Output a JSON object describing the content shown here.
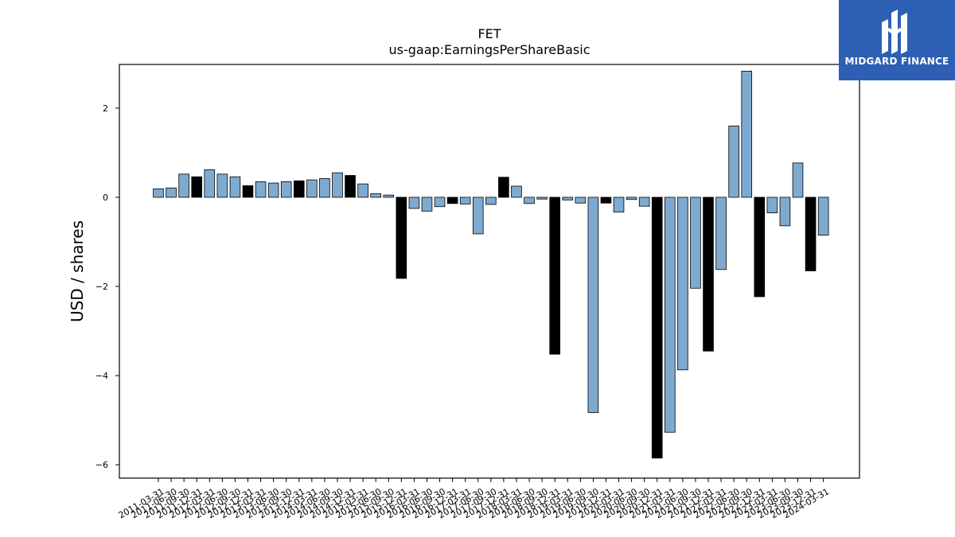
{
  "chart_data": {
    "type": "bar",
    "title": "FET",
    "subtitle": "us-gaap:EarningsPerShareBasic",
    "xlabel": "",
    "ylabel": "USD / shares",
    "ylim": [
      -6.3,
      2.98
    ],
    "yticks": [
      2,
      0,
      -2,
      -4,
      -6
    ],
    "ytick_labels": [
      "2",
      "0",
      "−2",
      "−4",
      "−6"
    ],
    "grid": false,
    "colors": {
      "light": "#7eaad0",
      "dark": "#000000",
      "edge": "#000000"
    },
    "categories": [
      "2011-03-31",
      "2011-06-30",
      "2011-09-30",
      "2011-12-31",
      "2012-03-31",
      "2012-06-30",
      "2012-09-30",
      "2012-12-31",
      "2013-03-31",
      "2013-06-30",
      "2013-09-30",
      "2013-12-31",
      "2014-03-31",
      "2014-06-30",
      "2014-09-30",
      "2014-12-31",
      "2015-03-31",
      "2015-06-30",
      "2015-09-30",
      "2015-12-31",
      "2016-03-31",
      "2016-06-30",
      "2016-09-30",
      "2016-12-31",
      "2017-03-31",
      "2017-06-30",
      "2017-09-30",
      "2017-12-31",
      "2018-03-31",
      "2018-06-30",
      "2018-09-30",
      "2018-12-31",
      "2019-03-31",
      "2019-06-30",
      "2019-09-30",
      "2019-12-31",
      "2020-03-31",
      "2020-06-30",
      "2020-09-30",
      "2020-12-31",
      "2021-03-31",
      "2021-06-30",
      "2021-09-30",
      "2021-12-31",
      "2022-03-31",
      "2022-06-30",
      "2022-09-30",
      "2022-12-31",
      "2023-03-31",
      "2023-06-30",
      "2023-09-30",
      "2023-12-31",
      "2024-03-31"
    ],
    "values": [
      0.19,
      0.21,
      0.52,
      0.46,
      0.62,
      0.52,
      0.46,
      0.26,
      0.35,
      0.32,
      0.35,
      0.37,
      0.39,
      0.42,
      0.55,
      0.49,
      0.3,
      0.08,
      0.05,
      -1.82,
      -0.25,
      -0.31,
      -0.21,
      -0.14,
      -0.15,
      -0.82,
      -0.16,
      0.45,
      0.25,
      -0.14,
      -0.04,
      -3.52,
      -0.06,
      -0.13,
      -4.83,
      -0.13,
      -0.33,
      -0.05,
      -0.2,
      -5.85,
      -5.27,
      -3.87,
      -2.04,
      -3.45,
      -1.62,
      1.6,
      2.83,
      -2.23,
      -0.35,
      -0.64,
      0.77,
      -1.65,
      -0.85
    ],
    "bar_tone": [
      "light",
      "light",
      "light",
      "dark",
      "light",
      "light",
      "light",
      "dark",
      "light",
      "light",
      "light",
      "dark",
      "light",
      "light",
      "light",
      "dark",
      "light",
      "light",
      "light",
      "dark",
      "light",
      "light",
      "light",
      "dark",
      "light",
      "light",
      "light",
      "dark",
      "light",
      "light",
      "light",
      "dark",
      "light",
      "light",
      "light",
      "dark",
      "light",
      "light",
      "light",
      "dark",
      "light",
      "light",
      "light",
      "dark",
      "light",
      "light",
      "light",
      "dark",
      "light",
      "light",
      "light",
      "dark",
      "light"
    ]
  },
  "logo": {
    "text": "MIDGARD FINANCE",
    "background": "#2d5fb4"
  }
}
